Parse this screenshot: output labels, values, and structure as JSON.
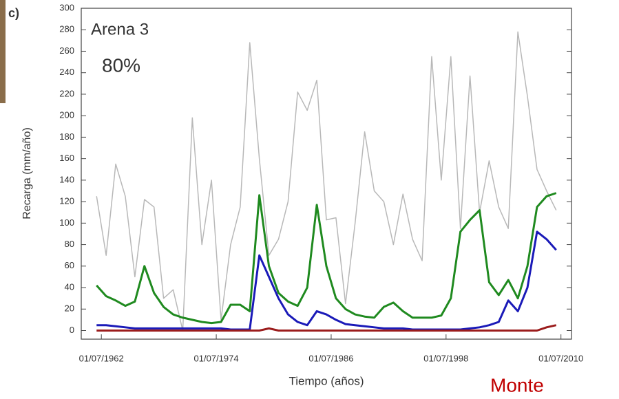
{
  "chart_data": {
    "type": "line",
    "panel_label": "c)",
    "title": "Arena 3",
    "subtitle": "80%",
    "annotation": "Monte",
    "ylabel": "Recarga (mm/año)",
    "xlabel": "Tiempo (años)",
    "x": [
      1962,
      1963,
      1964,
      1965,
      1966,
      1967,
      1968,
      1969,
      1970,
      1971,
      1972,
      1973,
      1974,
      1975,
      1976,
      1977,
      1978,
      1979,
      1980,
      1981,
      1982,
      1983,
      1984,
      1985,
      1986,
      1987,
      1988,
      1989,
      1990,
      1991,
      1992,
      1993,
      1994,
      1995,
      1996,
      1997,
      1998,
      1999,
      2000,
      2001,
      2002,
      2003,
      2004,
      2005,
      2006,
      2007,
      2008,
      2009,
      2010
    ],
    "series": [
      {
        "color": "#b8b8b8",
        "values": [
          125,
          70,
          155,
          125,
          50,
          122,
          115,
          30,
          38,
          0,
          198,
          80,
          140,
          10,
          80,
          115,
          268,
          160,
          70,
          85,
          120,
          222,
          205,
          233,
          103,
          105,
          25,
          100,
          185,
          130,
          120,
          80,
          127,
          85,
          65,
          255,
          140,
          255,
          95,
          237,
          110,
          158,
          115,
          95,
          278,
          218,
          150,
          130,
          112
        ]
      },
      {
        "color": "#1f8a1f",
        "values": [
          42,
          32,
          28,
          23,
          27,
          60,
          35,
          22,
          15,
          12,
          10,
          8,
          7,
          8,
          24,
          24,
          18,
          126,
          60,
          35,
          27,
          23,
          40,
          117,
          60,
          30,
          20,
          15,
          13,
          12,
          22,
          26,
          18,
          12,
          12,
          12,
          14,
          30,
          92,
          103,
          112,
          45,
          33,
          47,
          30,
          60,
          115,
          125,
          128
        ]
      },
      {
        "color": "#1a1ab8",
        "values": [
          5,
          5,
          4,
          3,
          2,
          2,
          2,
          2,
          2,
          2,
          2,
          2,
          2,
          2,
          1,
          1,
          1,
          70,
          50,
          30,
          15,
          8,
          5,
          18,
          15,
          10,
          6,
          5,
          4,
          3,
          2,
          2,
          2,
          1,
          1,
          1,
          1,
          1,
          1,
          2,
          3,
          5,
          8,
          28,
          18,
          40,
          92,
          85,
          75
        ]
      },
      {
        "color": "#9b1c1c",
        "values": [
          0,
          0,
          0,
          0,
          0,
          0,
          0,
          0,
          0,
          0,
          0,
          0,
          0,
          0,
          0,
          0,
          0,
          0,
          2,
          0,
          0,
          0,
          0,
          0,
          0,
          0,
          0,
          0,
          0,
          0,
          0,
          0,
          0,
          0,
          0,
          0,
          0,
          0,
          0,
          0,
          0,
          0,
          0,
          0,
          0,
          0,
          0,
          3,
          5
        ]
      }
    ],
    "xlim": [
      1960.4,
      2011.6
    ],
    "ylim": [
      -8,
      300
    ],
    "xticks": [
      {
        "value": 1962.5,
        "label": "01/07/1962"
      },
      {
        "value": 1974.5,
        "label": "01/07/1974"
      },
      {
        "value": 1986.5,
        "label": "01/07/1986"
      },
      {
        "value": 1998.5,
        "label": "01/07/1998"
      },
      {
        "value": 2010.5,
        "label": "01/07/2010"
      }
    ],
    "yticks": [
      0,
      20,
      40,
      60,
      80,
      100,
      120,
      140,
      160,
      180,
      200,
      220,
      240,
      260,
      280,
      300
    ]
  }
}
